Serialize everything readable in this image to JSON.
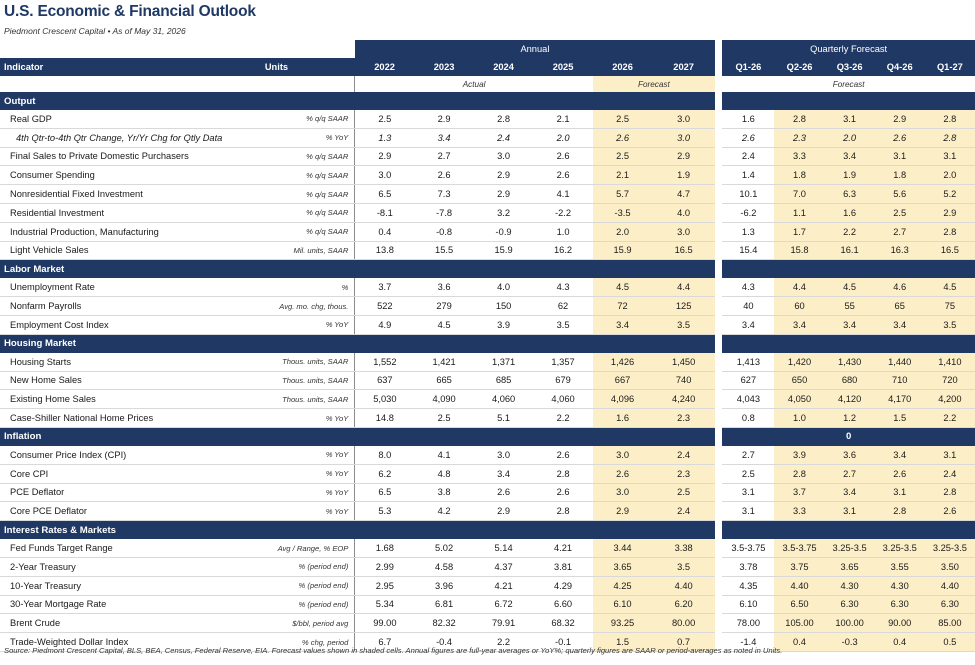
{
  "title": "U.S. Economic & Financial Outlook",
  "subtitle": "Piedmont Crescent Capital  •  As of May 31, 2026",
  "header": {
    "annual_label": "Annual",
    "quarterly_label": "Quarterly Forecast",
    "indicator_label": "Indicator",
    "units_label": "Units",
    "years": [
      "2022",
      "2023",
      "2024",
      "2025",
      "2026",
      "2027"
    ],
    "quarters": [
      "Q1-26",
      "Q2-26",
      "Q3-26",
      "Q4-26",
      "Q1-27"
    ],
    "actual_label": "Actual",
    "forecast_label": "Forecast",
    "q_forecast_label": "Forecast"
  },
  "sections": [
    {
      "name": "Output",
      "q_label": "",
      "rows": [
        {
          "label": "Real GDP",
          "units": "% q/q SAAR",
          "vals": [
            "2.5",
            "2.9",
            "2.8",
            "2.1",
            "2.5",
            "3.0"
          ],
          "q": [
            "1.6",
            "2.8",
            "3.1",
            "2.9",
            "2.8"
          ]
        },
        {
          "label": "4th Qtr-to-4th Qtr Change, Yr/Yr Chg for Qtly Data",
          "units": "% YoY",
          "sub": true,
          "vals": [
            "1.3",
            "3.4",
            "2.4",
            "2.0",
            "2.6",
            "3.0"
          ],
          "q": [
            "2.6",
            "2.3",
            "2.0",
            "2.6",
            "2.8"
          ]
        },
        {
          "label": "Final Sales to Private Domestic Purchasers",
          "units": "% q/q SAAR",
          "vals": [
            "2.9",
            "2.7",
            "3.0",
            "2.6",
            "2.5",
            "2.9"
          ],
          "q": [
            "2.4",
            "3.3",
            "3.4",
            "3.1",
            "3.1"
          ]
        },
        {
          "label": "Consumer Spending",
          "units": "% q/q SAAR",
          "vals": [
            "3.0",
            "2.6",
            "2.9",
            "2.6",
            "2.1",
            "1.9"
          ],
          "q": [
            "1.4",
            "1.8",
            "1.9",
            "1.8",
            "2.0"
          ]
        },
        {
          "label": "Nonresidential Fixed Investment",
          "units": "% q/q SAAR",
          "vals": [
            "6.5",
            "7.3",
            "2.9",
            "4.1",
            "5.7",
            "4.7"
          ],
          "q": [
            "10.1",
            "7.0",
            "6.3",
            "5.6",
            "5.2"
          ]
        },
        {
          "label": "Residential Investment",
          "units": "% q/q SAAR",
          "vals": [
            "-8.1",
            "-7.8",
            "3.2",
            "-2.2",
            "-3.5",
            "4.0"
          ],
          "q": [
            "-6.2",
            "1.1",
            "1.6",
            "2.5",
            "2.9"
          ]
        },
        {
          "label": "Industrial Production, Manufacturing",
          "units": "% q/q SAAR",
          "vals": [
            "0.4",
            "-0.8",
            "-0.9",
            "1.0",
            "2.0",
            "3.0"
          ],
          "q": [
            "1.3",
            "1.7",
            "2.2",
            "2.7",
            "2.8"
          ]
        },
        {
          "label": "Light Vehicle Sales",
          "units": "Mil. units, SAAR",
          "vals": [
            "13.8",
            "15.5",
            "15.9",
            "16.2",
            "15.9",
            "16.5"
          ],
          "q": [
            "15.4",
            "15.8",
            "16.1",
            "16.3",
            "16.5"
          ]
        }
      ]
    },
    {
      "name": "Labor Market",
      "q_label": "",
      "rows": [
        {
          "label": "Unemployment Rate",
          "units": "%",
          "vals": [
            "3.7",
            "3.6",
            "4.0",
            "4.3",
            "4.5",
            "4.4"
          ],
          "q": [
            "4.3",
            "4.4",
            "4.5",
            "4.6",
            "4.5"
          ]
        },
        {
          "label": "Nonfarm Payrolls",
          "units": "Avg. mo. chg, thous.",
          "vals": [
            "522",
            "279",
            "150",
            "62",
            "72",
            "125"
          ],
          "q": [
            "40",
            "60",
            "55",
            "65",
            "75"
          ]
        },
        {
          "label": "Employment Cost Index",
          "units": "% YoY",
          "vals": [
            "4.9",
            "4.5",
            "3.9",
            "3.5",
            "3.4",
            "3.5"
          ],
          "q": [
            "3.4",
            "3.4",
            "3.4",
            "3.4",
            "3.5"
          ]
        }
      ]
    },
    {
      "name": "Housing Market",
      "q_label": "",
      "rows": [
        {
          "label": "Housing Starts",
          "units": "Thous. units, SAAR",
          "vals": [
            "1,552",
            "1,421",
            "1,371",
            "1,357",
            "1,426",
            "1,450"
          ],
          "q": [
            "1,413",
            "1,420",
            "1,430",
            "1,440",
            "1,410"
          ]
        },
        {
          "label": "New Home Sales",
          "units": "Thous. units, SAAR",
          "vals": [
            "637",
            "665",
            "685",
            "679",
            "667",
            "740"
          ],
          "q": [
            "627",
            "650",
            "680",
            "710",
            "720"
          ]
        },
        {
          "label": "Existing Home Sales",
          "units": "Thous. units, SAAR",
          "vals": [
            "5,030",
            "4,090",
            "4,060",
            "4,060",
            "4,096",
            "4,240"
          ],
          "q": [
            "4,043",
            "4,050",
            "4,120",
            "4,170",
            "4,200"
          ]
        },
        {
          "label": "Case-Shiller National Home Prices",
          "units": "% YoY",
          "vals": [
            "14.8",
            "2.5",
            "5.1",
            "2.2",
            "1.6",
            "2.3"
          ],
          "q": [
            "0.8",
            "1.0",
            "1.2",
            "1.5",
            "2.2"
          ]
        }
      ]
    },
    {
      "name": "Inflation",
      "q_label": "0",
      "rows": [
        {
          "label": "Consumer Price Index (CPI)",
          "units": "% YoY",
          "vals": [
            "8.0",
            "4.1",
            "3.0",
            "2.6",
            "3.0",
            "2.4"
          ],
          "q": [
            "2.7",
            "3.9",
            "3.6",
            "3.4",
            "3.1"
          ]
        },
        {
          "label": "Core CPI",
          "units": "% YoY",
          "vals": [
            "6.2",
            "4.8",
            "3.4",
            "2.8",
            "2.6",
            "2.3"
          ],
          "q": [
            "2.5",
            "2.8",
            "2.7",
            "2.6",
            "2.4"
          ]
        },
        {
          "label": "PCE Deflator",
          "units": "% YoY",
          "vals": [
            "6.5",
            "3.8",
            "2.6",
            "2.6",
            "3.0",
            "2.5"
          ],
          "q": [
            "3.1",
            "3.7",
            "3.4",
            "3.1",
            "2.8"
          ]
        },
        {
          "label": "Core PCE Deflator",
          "units": "% YoY",
          "vals": [
            "5.3",
            "4.2",
            "2.9",
            "2.8",
            "2.9",
            "2.4"
          ],
          "q": [
            "3.1",
            "3.3",
            "3.1",
            "2.8",
            "2.6"
          ]
        }
      ]
    },
    {
      "name": "Interest Rates & Markets",
      "q_label": "",
      "rows": [
        {
          "label": "Fed Funds Target Range",
          "units": "Avg / Range, % EOP",
          "vals": [
            "1.68",
            "5.02",
            "5.14",
            "4.21",
            "3.44",
            "3.38"
          ],
          "q": [
            "3.5-3.75",
            "3.5-3.75",
            "3.25-3.5",
            "3.25-3.5",
            "3.25-3.5"
          ]
        },
        {
          "label": "2-Year Treasury",
          "units": "% (period end)",
          "vals": [
            "2.99",
            "4.58",
            "4.37",
            "3.81",
            "3.65",
            "3.5"
          ],
          "q": [
            "3.78",
            "3.75",
            "3.65",
            "3.55",
            "3.50"
          ]
        },
        {
          "label": "10-Year Treasury",
          "units": "% (period end)",
          "vals": [
            "2.95",
            "3.96",
            "4.21",
            "4.29",
            "4.25",
            "4.40"
          ],
          "q": [
            "4.35",
            "4.40",
            "4.30",
            "4.30",
            "4.40"
          ]
        },
        {
          "label": "30-Year Mortgage Rate",
          "units": "% (period end)",
          "vals": [
            "5.34",
            "6.81",
            "6.72",
            "6.60",
            "6.10",
            "6.20"
          ],
          "q": [
            "6.10",
            "6.50",
            "6.30",
            "6.30",
            "6.30"
          ]
        },
        {
          "label": "Brent Crude",
          "units": "$/bbl, period avg",
          "vals": [
            "99.00",
            "82.32",
            "79.91",
            "68.32",
            "93.25",
            "80.00"
          ],
          "q": [
            "78.00",
            "105.00",
            "100.00",
            "90.00",
            "85.00"
          ]
        },
        {
          "label": "Trade-Weighted Dollar Index",
          "units": "% chg, period",
          "vals": [
            "6.7",
            "-0.4",
            "2.2",
            "-0.1",
            "1.5",
            "0.7"
          ],
          "q": [
            "-1.4",
            "0.4",
            "-0.3",
            "0.4",
            "0.5"
          ]
        }
      ]
    }
  ],
  "source": "Source: Piedmont Crescent Capital, BLS, BEA, Census, Federal Reserve, EIA. Forecast values shown in shaded cells. Annual figures are full-year averages or YoY%; quarterly figures are SAAR or period-averages as noted in Units."
}
